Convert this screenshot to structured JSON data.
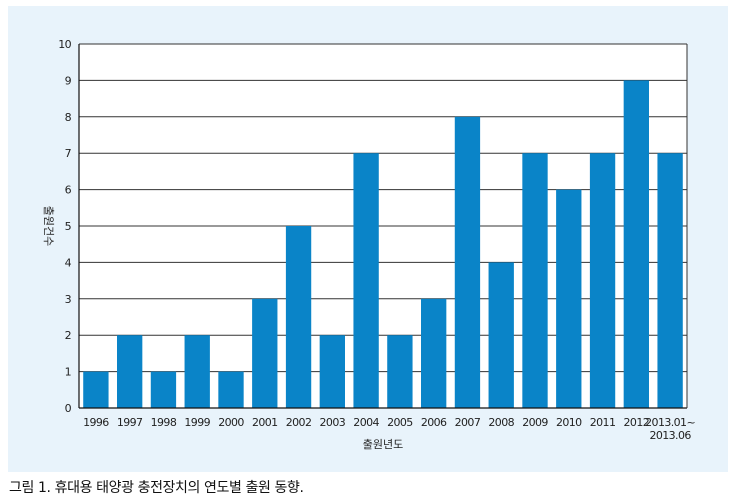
{
  "caption": "그림 1. 휴대용 태양광 충전장치의 연도별 출원 동향.",
  "colors": {
    "bar": "#0a84c8",
    "panel_background": "#e8f3fb",
    "plot_background": "#ffffff",
    "grid": "#333333"
  },
  "chart_data": {
    "type": "bar",
    "categories": [
      "1996",
      "1997",
      "1998",
      "1999",
      "2000",
      "2001",
      "2002",
      "2003",
      "2004",
      "2005",
      "2006",
      "2007",
      "2008",
      "2009",
      "2010",
      "2011",
      "2012",
      "2013.01~\n2013.06"
    ],
    "values": [
      1,
      2,
      1,
      2,
      1,
      3,
      5,
      2,
      7,
      2,
      3,
      8,
      4,
      7,
      6,
      7,
      9,
      7
    ],
    "xlabel": "출원년도",
    "ylabel": "출원건수",
    "ylim": [
      0,
      10
    ],
    "yticks": [
      0,
      1,
      2,
      3,
      4,
      5,
      6,
      7,
      8,
      9,
      10
    ],
    "grid": true,
    "legend": "none"
  }
}
